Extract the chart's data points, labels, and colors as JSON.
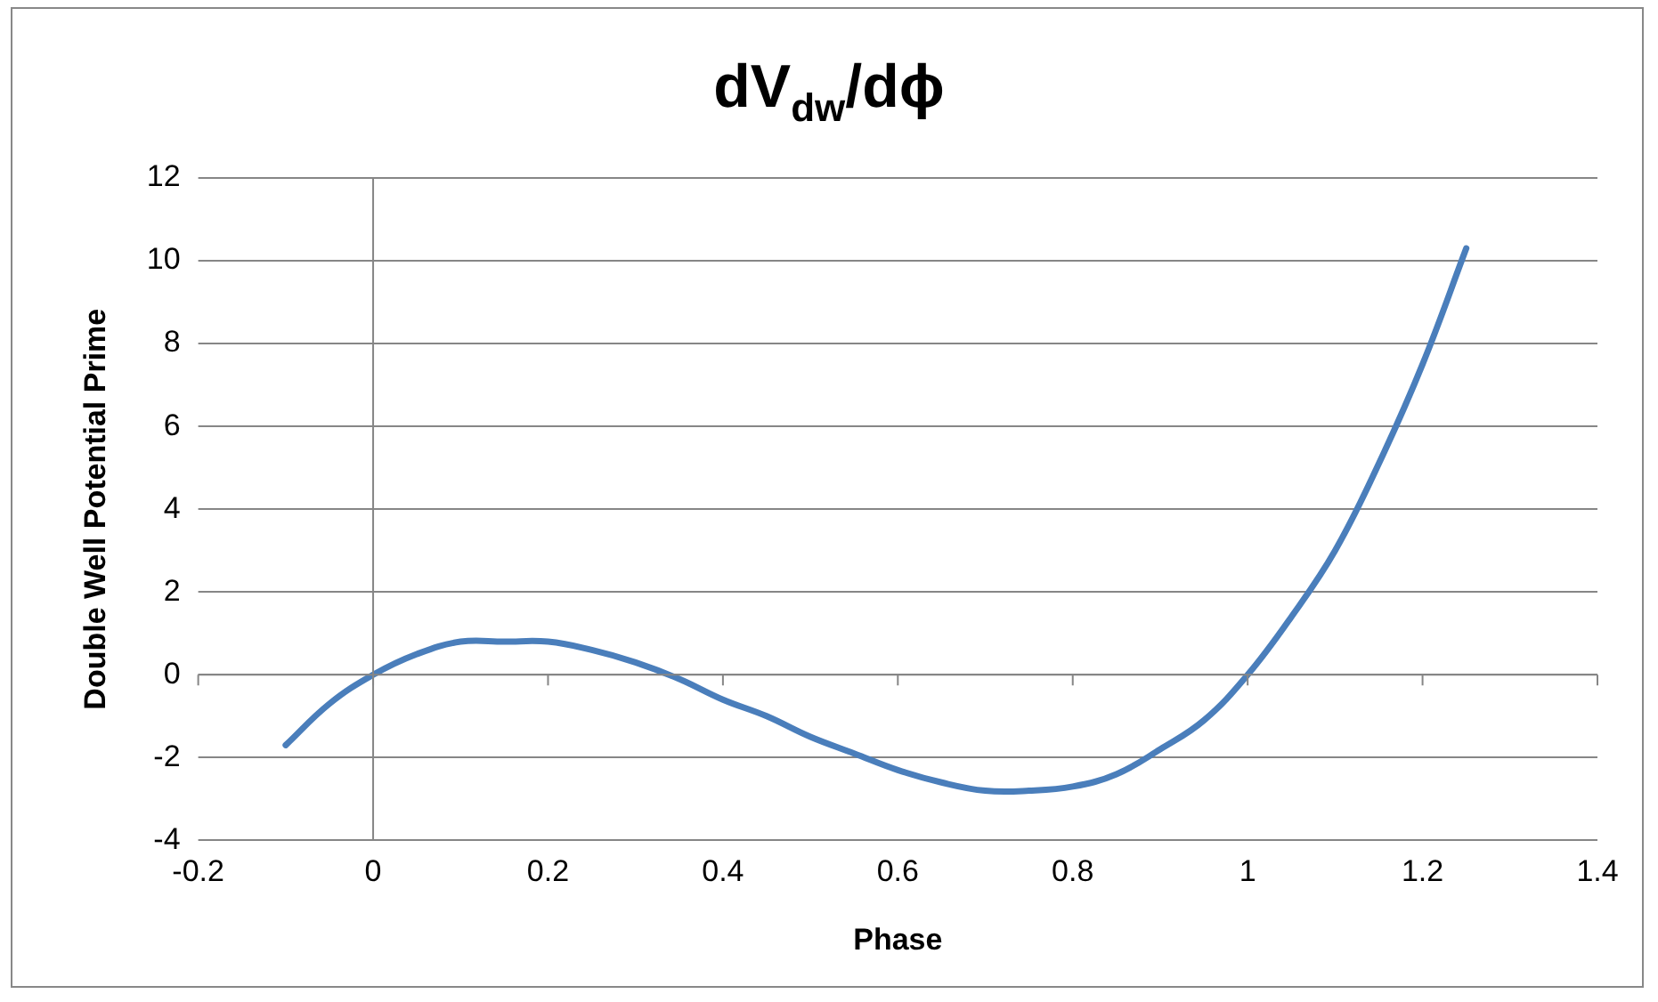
{
  "chart_data": {
    "type": "line",
    "title": "dV$_{dw}$/dϕ",
    "xlabel": "Phase",
    "ylabel": "Double Well Potential Prime",
    "x": [
      -0.1,
      -0.05,
      0,
      0.05,
      0.1,
      0.15,
      0.2,
      0.25,
      0.3,
      0.35,
      0.4,
      0.45,
      0.5,
      0.55,
      0.6,
      0.65,
      0.7,
      0.75,
      0.8,
      0.85,
      0.9,
      0.95,
      1.0,
      1.05,
      1.1,
      1.15,
      1.2,
      1.25
    ],
    "series": [
      {
        "color": "#4a7ebb",
        "values": [
          -1.7,
          -0.7,
          0,
          0.5,
          0.8,
          0.8,
          0.8,
          0.6,
          0.3,
          -0.1,
          -0.6,
          -1.0,
          -1.5,
          -1.9,
          -2.3,
          -2.6,
          -2.8,
          -2.8,
          -2.7,
          -2.4,
          -1.8,
          -1.1,
          0,
          1.4,
          3.0,
          5.1,
          7.5,
          10.3
        ]
      }
    ],
    "xlim": [
      -0.2,
      1.4
    ],
    "xticks": [
      -0.2,
      0,
      0.2,
      0.4,
      0.6,
      0.8,
      1,
      1.2,
      1.4
    ],
    "ylim": [
      -4,
      12
    ],
    "yticks": [
      -4,
      -2,
      0,
      2,
      4,
      6,
      8,
      10,
      12
    ],
    "ref_lines": [
      {
        "axis": "x",
        "value": 0,
        "color": "#868686"
      }
    ],
    "grid": "y",
    "legend": false,
    "marker": "none",
    "line_style": "solid"
  }
}
